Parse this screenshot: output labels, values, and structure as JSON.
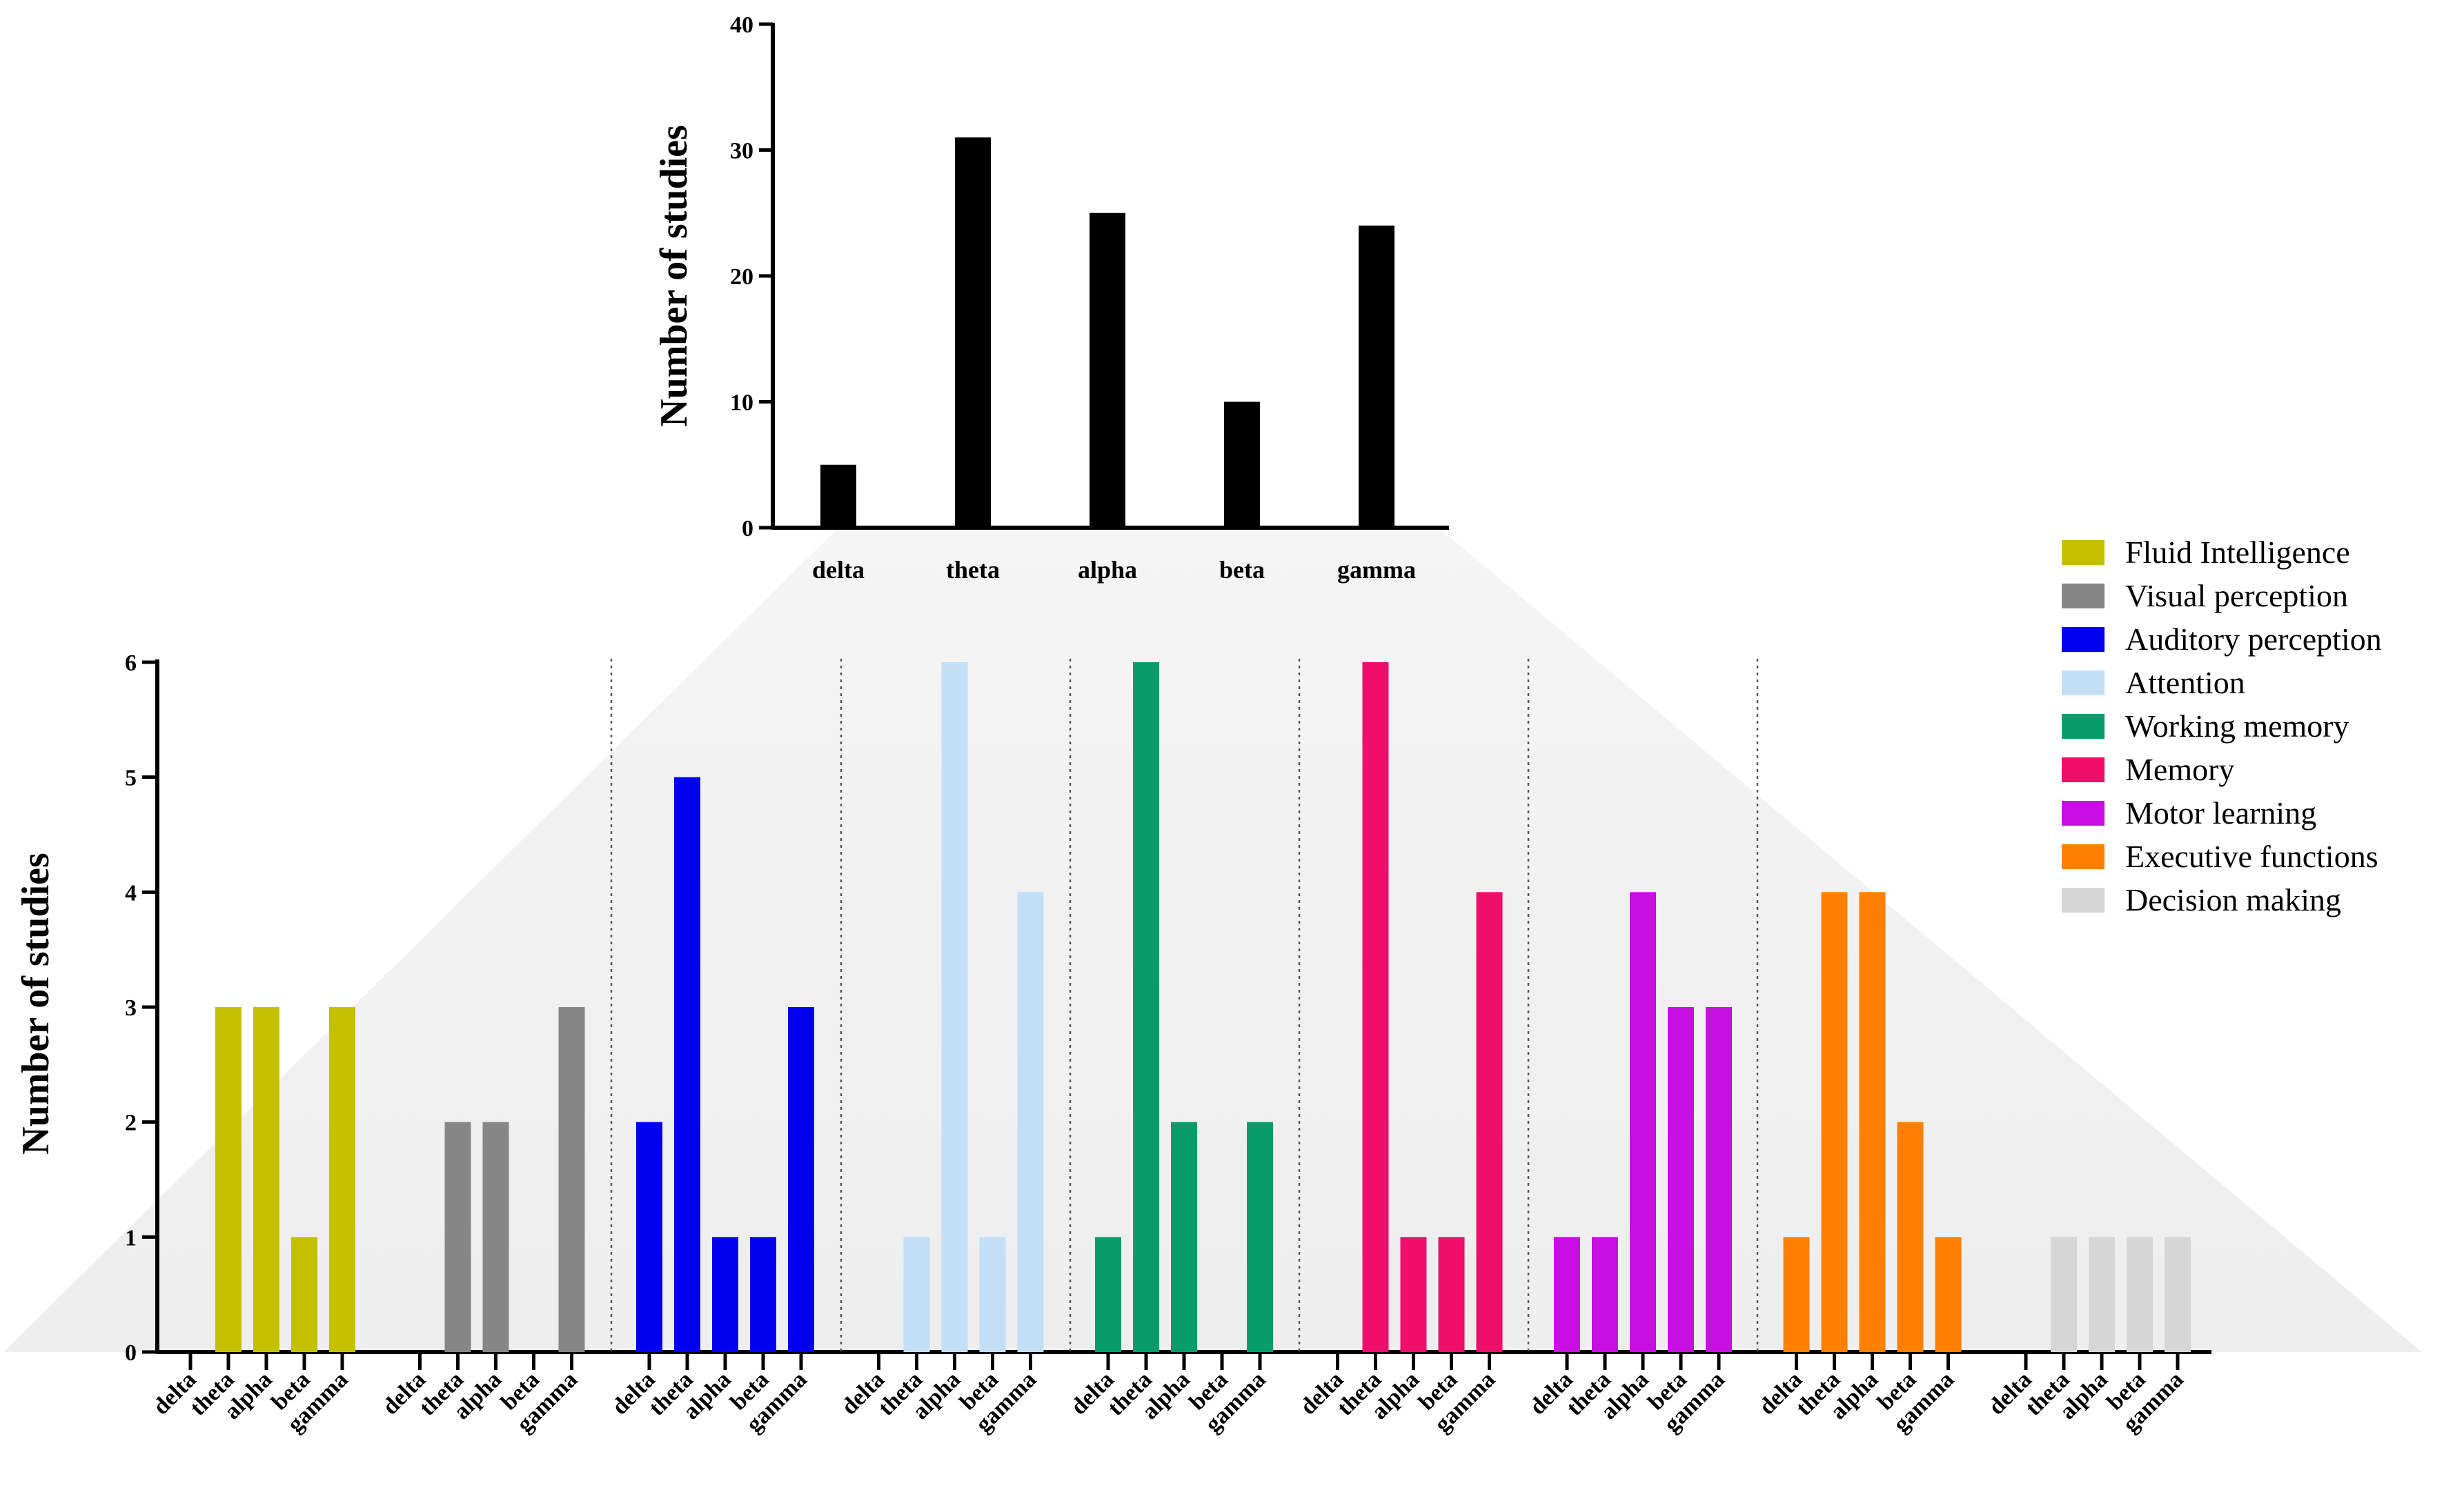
{
  "chart_data": [
    {
      "type": "bar",
      "title": "",
      "xlabel": "",
      "ylabel": "Number of studies",
      "categories": [
        "delta",
        "theta",
        "alpha",
        "beta",
        "gamma"
      ],
      "values": [
        5,
        31,
        25,
        10,
        24
      ],
      "ylim": [
        0,
        40
      ],
      "yticks": [
        0,
        10,
        20,
        30,
        40
      ],
      "color": "#000000"
    },
    {
      "type": "bar",
      "title": "",
      "xlabel": "",
      "ylabel": "Number of studies",
      "categories": [
        "delta",
        "theta",
        "alpha",
        "beta",
        "gamma"
      ],
      "ylim": [
        0,
        6
      ],
      "yticks": [
        0,
        1,
        2,
        3,
        4,
        5,
        6
      ],
      "legend_position": "right",
      "series": [
        {
          "name": "Fluid Intelligence",
          "color": "#c4c000",
          "values": [
            0,
            3,
            3,
            1,
            3
          ]
        },
        {
          "name": "Visual perception",
          "color": "#868686",
          "values": [
            0,
            2,
            2,
            0,
            3
          ]
        },
        {
          "name": "Auditory perception",
          "color": "#0000ee",
          "values": [
            2,
            5,
            1,
            1,
            3
          ]
        },
        {
          "name": "Attention",
          "color": "#c2dff7",
          "values": [
            0,
            1,
            6,
            1,
            4
          ]
        },
        {
          "name": "Working memory",
          "color": "#079c6a",
          "values": [
            1,
            6,
            2,
            0,
            2
          ]
        },
        {
          "name": "Memory",
          "color": "#ef0e6a",
          "values": [
            0,
            6,
            1,
            1,
            4
          ]
        },
        {
          "name": "Motor learning",
          "color": "#c60fe0",
          "values": [
            1,
            1,
            4,
            3,
            3
          ]
        },
        {
          "name": "Executive functions",
          "color": "#ff8000",
          "values": [
            1,
            4,
            4,
            2,
            1
          ]
        },
        {
          "name": "Decision making",
          "color": "#d6d6d6",
          "values": [
            0,
            1,
            1,
            1,
            1
          ]
        }
      ]
    }
  ]
}
